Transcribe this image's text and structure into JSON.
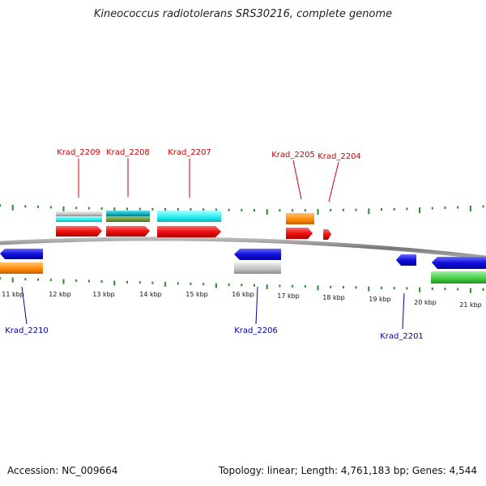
{
  "title": "Kineococcus radiotolerans SRS30216, complete genome",
  "footer": {
    "accession": "Accession: NC_009664",
    "summary": "Topology: linear; Length: 4,761,183 bp; Genes: 4,544"
  },
  "colors": {
    "label_top": "#cc0000",
    "label_bottom": "#0000aa",
    "tick": "#2a8a2a",
    "backbone": "#888888",
    "red": "#ee1111",
    "blue": "#1111dd",
    "orange": "#ff8800",
    "cyan": "#22eeee",
    "olive": "#6b9b3a",
    "gray": "#c0c0c0",
    "green": "#44cc44",
    "teal": "#11aabb"
  },
  "scale": {
    "unit": "kbp",
    "labels": [
      "11 kbp",
      "12 kbp",
      "13 kbp",
      "14 kbp",
      "15 kbp",
      "16 kbp",
      "17 kbp",
      "18 kbp",
      "19 kbp",
      "20 kbp",
      "21 kbp"
    ]
  },
  "gene_labels": {
    "top": [
      "Krad_2209",
      "Krad_2208",
      "Krad_2207",
      "Krad_2205",
      "Krad_2204"
    ],
    "bottom": [
      "Krad_2210",
      "Krad_2206",
      "Krad_2201"
    ]
  }
}
